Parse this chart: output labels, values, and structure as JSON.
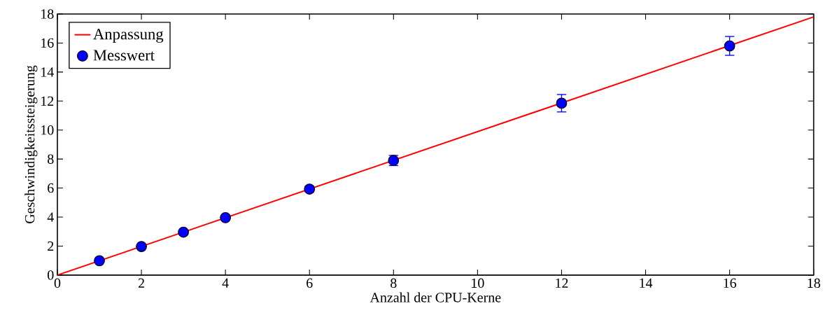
{
  "chart_data": {
    "type": "scatter",
    "xlabel": "Anzahl der CPU-Kerne",
    "ylabel": "Geschwindigkeitssteigerung",
    "series": [
      {
        "name": "Messwert",
        "color": "#0000ff",
        "marker": "circle",
        "x": [
          1,
          2,
          3,
          4,
          6,
          8,
          12,
          16
        ],
        "values": [
          0.99,
          1.97,
          2.96,
          3.96,
          5.93,
          7.9,
          11.85,
          15.8
        ],
        "errors": [
          0.1,
          0.1,
          0.1,
          0.1,
          0.2,
          0.35,
          0.6,
          0.65
        ]
      },
      {
        "name": "Anpassung",
        "type": "line",
        "color": "#ff0000",
        "line_style": "solid",
        "marker": "none",
        "x": [
          0,
          18
        ],
        "values": [
          0,
          17.8
        ]
      }
    ],
    "xlim": [
      0,
      18
    ],
    "ylim": [
      0,
      18
    ],
    "xticks": [
      0,
      2,
      4,
      6,
      8,
      10,
      12,
      14,
      16,
      18
    ],
    "yticks": [
      0,
      2,
      4,
      6,
      8,
      10,
      12,
      14,
      16,
      18
    ],
    "legend": "top left"
  }
}
